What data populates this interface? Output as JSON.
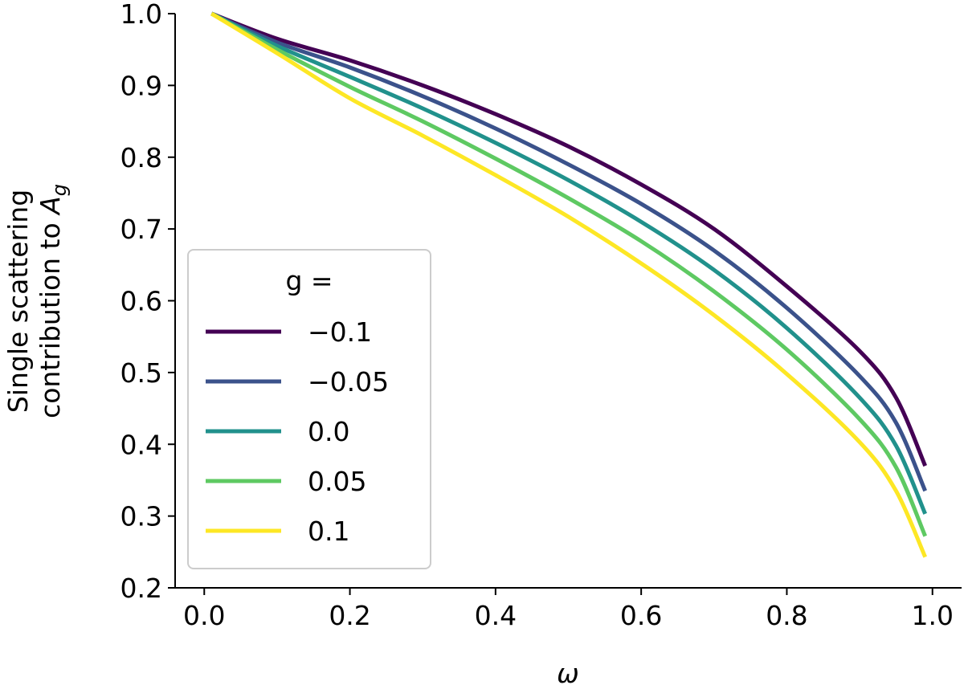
{
  "chart_data": {
    "type": "line",
    "title": "",
    "xlabel": "ω",
    "ylabel_line1": "Single scattering",
    "ylabel_line2_prefix": "contribution to ",
    "ylabel_line2_symbol": "A",
    "ylabel_line2_subscript": "g",
    "xlim": [
      -0.04,
      1.04
    ],
    "ylim": [
      0.2,
      1.0
    ],
    "xticks": [
      0.0,
      0.2,
      0.4,
      0.6,
      0.8,
      1.0
    ],
    "xtick_labels": [
      "0.0",
      "0.2",
      "0.4",
      "0.6",
      "0.8",
      "1.0"
    ],
    "yticks": [
      0.2,
      0.3,
      0.4,
      0.5,
      0.6,
      0.7,
      0.8,
      0.9,
      1.0
    ],
    "ytick_labels": [
      "0.2",
      "0.3",
      "0.4",
      "0.5",
      "0.6",
      "0.7",
      "0.8",
      "0.9",
      "1.0"
    ],
    "grid": false,
    "legend": {
      "title": "g =",
      "placement": "lower-left"
    },
    "x": [
      0.01,
      0.1,
      0.2,
      0.3,
      0.4,
      0.5,
      0.6,
      0.7,
      0.8,
      0.9,
      0.95,
      0.99
    ],
    "series": [
      {
        "name": "−0.1",
        "color": "#440154",
        "values": [
          1.0,
          0.965,
          0.935,
          0.9,
          0.86,
          0.815,
          0.762,
          0.7,
          0.62,
          0.53,
          0.465,
          0.37
        ]
      },
      {
        "name": "−0.05",
        "color": "#3b528b",
        "values": [
          1.0,
          0.96,
          0.925,
          0.885,
          0.84,
          0.79,
          0.735,
          0.67,
          0.59,
          0.495,
          0.43,
          0.335
        ]
      },
      {
        "name": "0.0",
        "color": "#21918c",
        "values": [
          1.0,
          0.955,
          0.912,
          0.868,
          0.82,
          0.768,
          0.71,
          0.643,
          0.562,
          0.465,
          0.398,
          0.303
        ]
      },
      {
        "name": "0.05",
        "color": "#5ec962",
        "values": [
          1.0,
          0.95,
          0.898,
          0.85,
          0.798,
          0.743,
          0.683,
          0.613,
          0.532,
          0.435,
          0.368,
          0.272
        ]
      },
      {
        "name": "0.1",
        "color": "#fde725",
        "values": [
          1.0,
          0.945,
          0.882,
          0.83,
          0.775,
          0.717,
          0.652,
          0.58,
          0.498,
          0.403,
          0.335,
          0.243
        ]
      }
    ]
  }
}
